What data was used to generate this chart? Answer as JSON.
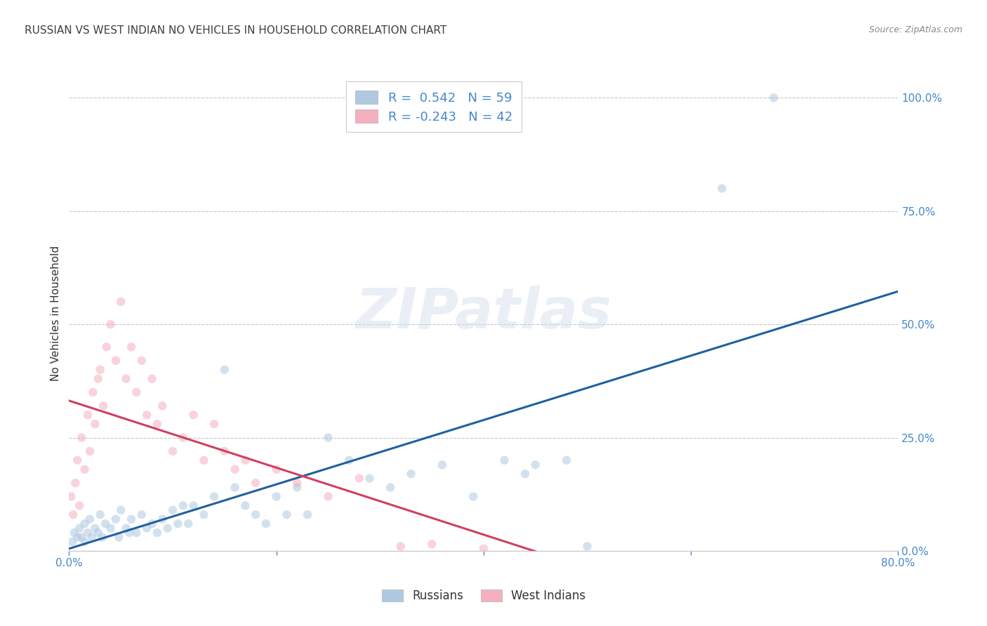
{
  "title": "RUSSIAN VS WEST INDIAN NO VEHICLES IN HOUSEHOLD CORRELATION CHART",
  "source": "Source: ZipAtlas.com",
  "ylabel": "No Vehicles in Household",
  "xlim": [
    0.0,
    80.0
  ],
  "ylim": [
    0.0,
    105.0
  ],
  "ytick_values": [
    0.0,
    25.0,
    50.0,
    75.0,
    100.0
  ],
  "ytick_labels": [
    "0.0%",
    "25.0%",
    "50.0%",
    "75.0%",
    "100.0%"
  ],
  "xtick_values": [
    0.0,
    20.0,
    40.0,
    60.0,
    80.0
  ],
  "xtick_labels": [
    "0.0%",
    "",
    "",
    "",
    "80.0%"
  ],
  "russian_color": "#a8c4e0",
  "west_indian_color": "#f4a8b8",
  "russian_line_color": "#2060a0",
  "west_indian_line_color": "#d04060",
  "grid_color": "#c8c8c8",
  "title_color": "#404040",
  "axis_tick_color": "#4488cc",
  "r_russian": 0.542,
  "n_russian": 59,
  "r_west_indian": -0.243,
  "n_west_indian": 42,
  "russian_x": [
    0.3,
    0.5,
    0.8,
    1.0,
    1.2,
    1.5,
    1.5,
    1.8,
    2.0,
    2.2,
    2.5,
    2.8,
    3.0,
    3.2,
    3.5,
    4.0,
    4.5,
    4.8,
    5.0,
    5.5,
    5.8,
    6.0,
    6.5,
    7.0,
    7.5,
    8.0,
    8.5,
    9.0,
    9.5,
    10.0,
    10.5,
    11.0,
    11.5,
    12.0,
    13.0,
    14.0,
    15.0,
    16.0,
    17.0,
    18.0,
    19.0,
    20.0,
    21.0,
    22.0,
    23.0,
    25.0,
    27.0,
    29.0,
    31.0,
    33.0,
    36.0,
    39.0,
    42.0,
    44.0,
    45.0,
    48.0,
    50.0,
    63.0,
    68.0
  ],
  "russian_y": [
    2.0,
    4.0,
    3.0,
    5.0,
    3.0,
    6.0,
    2.0,
    4.0,
    7.0,
    3.0,
    5.0,
    4.0,
    8.0,
    3.0,
    6.0,
    5.0,
    7.0,
    3.0,
    9.0,
    5.0,
    4.0,
    7.0,
    4.0,
    8.0,
    5.0,
    6.0,
    4.0,
    7.0,
    5.0,
    9.0,
    6.0,
    10.0,
    6.0,
    10.0,
    8.0,
    12.0,
    40.0,
    14.0,
    10.0,
    8.0,
    6.0,
    12.0,
    8.0,
    14.0,
    8.0,
    25.0,
    20.0,
    16.0,
    14.0,
    17.0,
    19.0,
    12.0,
    20.0,
    17.0,
    19.0,
    20.0,
    1.0,
    80.0,
    100.0
  ],
  "west_indian_x": [
    0.2,
    0.4,
    0.6,
    0.8,
    1.0,
    1.2,
    1.5,
    1.8,
    2.0,
    2.3,
    2.5,
    2.8,
    3.0,
    3.3,
    3.6,
    4.0,
    4.5,
    5.0,
    5.5,
    6.0,
    6.5,
    7.0,
    7.5,
    8.0,
    8.5,
    9.0,
    10.0,
    11.0,
    12.0,
    13.0,
    14.0,
    15.0,
    16.0,
    17.0,
    18.0,
    20.0,
    22.0,
    25.0,
    28.0,
    32.0,
    35.0,
    40.0
  ],
  "west_indian_y": [
    12.0,
    8.0,
    15.0,
    20.0,
    10.0,
    25.0,
    18.0,
    30.0,
    22.0,
    35.0,
    28.0,
    38.0,
    40.0,
    32.0,
    45.0,
    50.0,
    42.0,
    55.0,
    38.0,
    45.0,
    35.0,
    42.0,
    30.0,
    38.0,
    28.0,
    32.0,
    22.0,
    25.0,
    30.0,
    20.0,
    28.0,
    22.0,
    18.0,
    20.0,
    15.0,
    18.0,
    15.0,
    12.0,
    16.0,
    1.0,
    1.5,
    0.5
  ],
  "marker_size": 80,
  "marker_alpha": 0.5,
  "line_width": 2.2,
  "background_color": "#ffffff",
  "watermark_color": "#c8d8e8",
  "watermark_alpha": 0.4
}
